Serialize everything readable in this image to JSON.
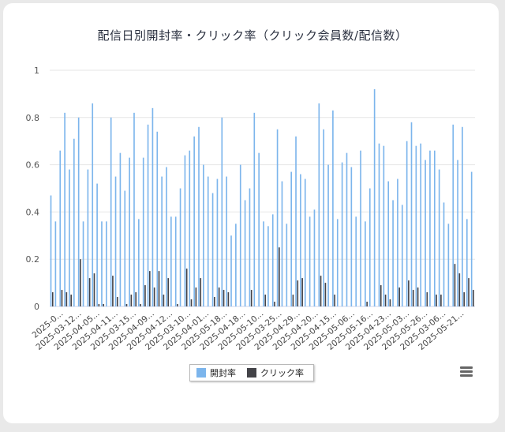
{
  "chart_data": {
    "type": "bar",
    "title": "配信日別開封率・クリック率（クリック会員数/配信数）",
    "ylim": [
      0,
      1
    ],
    "yticks": [
      "0",
      "0.2",
      "0.4",
      "0.6",
      "0.8",
      "1"
    ],
    "xtick_labels": [
      "2025-0...",
      "2025-03-12...",
      "2025-04-05...",
      "2025-04-11...",
      "2025-03-15...",
      "2025-04-09...",
      "2025-04-12...",
      "2025-03-10...",
      "2025-04-01...",
      "2025-05-18...",
      "2025-04-18...",
      "2025-05-10...",
      "2025-03-25...",
      "2025-04-29...",
      "2025-04-20...",
      "2025-04-15...",
      "2025-05-06...",
      "2025-05-16...",
      "2025-04-23...",
      "2025-05-03...",
      "2025-05-26...",
      "2025-03-06...",
      "2025-05-21..."
    ],
    "grid": true,
    "legend_position": "bottom",
    "series": [
      {
        "name": "開封率",
        "color": "#7cb5ec",
        "values": [
          0.47,
          0.36,
          0.66,
          0.82,
          0.58,
          0.71,
          0.8,
          0.36,
          0.58,
          0.86,
          0.52,
          0.36,
          0.36,
          0.8,
          0.55,
          0.65,
          0.49,
          0.63,
          0.82,
          0.37,
          0.63,
          0.77,
          0.84,
          0.74,
          0.55,
          0.59,
          0.38,
          0.38,
          0.5,
          0.64,
          0.66,
          0.72,
          0.76,
          0.6,
          0.55,
          0.48,
          0.54,
          0.8,
          0.55,
          0.3,
          0.35,
          0.6,
          0.45,
          0.5,
          0.82,
          0.65,
          0.36,
          0.34,
          0.39,
          0.75,
          0.53,
          0.35,
          0.57,
          0.72,
          0.56,
          0.54,
          0.38,
          0.41,
          0.86,
          0.75,
          0.6,
          0.83,
          0.37,
          0.61,
          0.65,
          0.59,
          0.38,
          0.66,
          0.36,
          0.5,
          0.92,
          0.69,
          0.68,
          0.53,
          0.45,
          0.54,
          0.43,
          0.7,
          0.78,
          0.68,
          0.69,
          0.62,
          0.66,
          0.66,
          0.58,
          0.44,
          0.35,
          0.77,
          0.62,
          0.76,
          0.37,
          0.57
        ]
      },
      {
        "name": "クリック率",
        "color": "#434348",
        "values": [
          0.06,
          0.0,
          0.07,
          0.06,
          0.05,
          0.0,
          0.2,
          0.0,
          0.12,
          0.14,
          0.01,
          0.01,
          0.0,
          0.13,
          0.04,
          0.0,
          0.01,
          0.05,
          0.06,
          0.01,
          0.09,
          0.15,
          0.08,
          0.15,
          0.05,
          0.12,
          0.0,
          0.01,
          0.0,
          0.16,
          0.03,
          0.08,
          0.12,
          0.0,
          0.0,
          0.04,
          0.08,
          0.07,
          0.06,
          0.0,
          0.0,
          0.0,
          0.0,
          0.07,
          0.0,
          0.0,
          0.05,
          0.0,
          0.02,
          0.25,
          0.0,
          0.0,
          0.05,
          0.11,
          0.12,
          0.0,
          0.0,
          0.0,
          0.13,
          0.1,
          0.0,
          0.05,
          0.0,
          0.0,
          0.0,
          0.0,
          0.0,
          0.0,
          0.02,
          0.0,
          0.0,
          0.09,
          0.05,
          0.03,
          0.0,
          0.08,
          0.0,
          0.11,
          0.07,
          0.08,
          0.0,
          0.06,
          0.0,
          0.05,
          0.05,
          0.0,
          0.0,
          0.18,
          0.14,
          0.06,
          0.12,
          0.07
        ]
      }
    ]
  },
  "legend": {
    "open_rate_label": "開封率",
    "click_rate_label": "クリック率"
  },
  "export_menu": {
    "icon": "hamburger-menu-icon"
  }
}
